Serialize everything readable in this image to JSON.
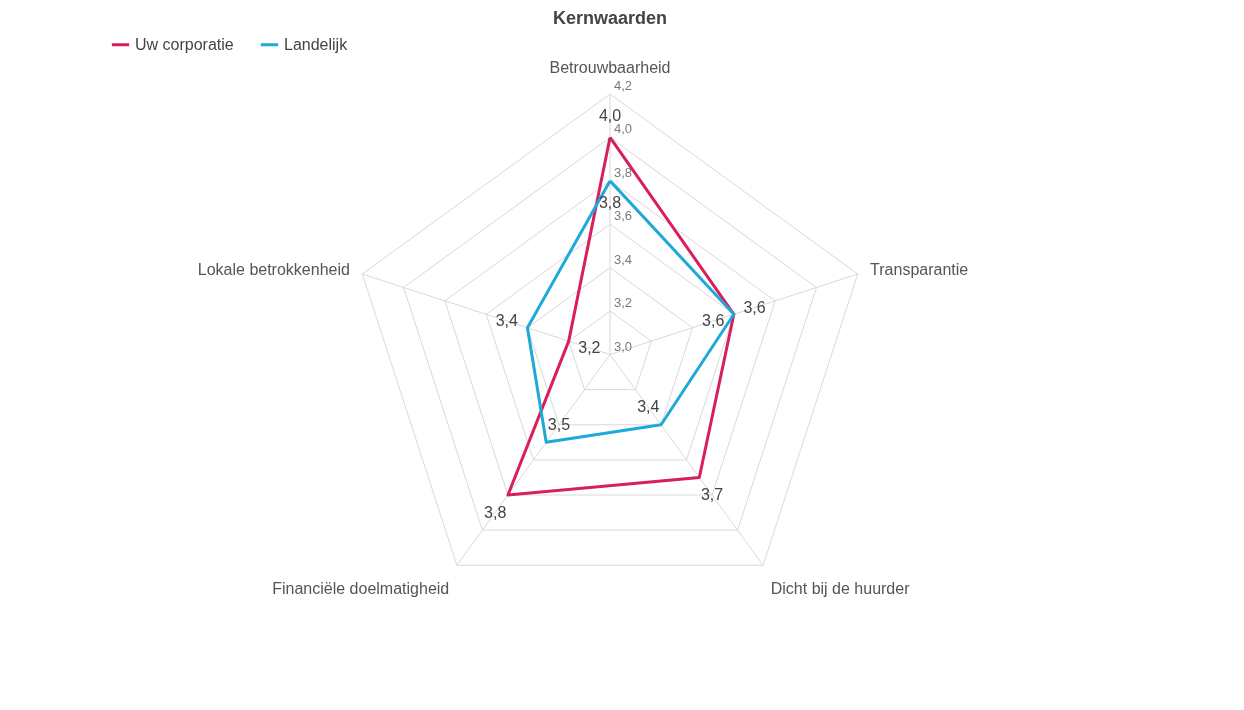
{
  "chart_data": {
    "type": "radar",
    "title": "Kernwaarden",
    "categories": [
      "Betrouwbaarheid",
      "Transparantie",
      "Dicht bij de huurder",
      "Financiële doelmatigheid",
      "Lokale betrokkenheid"
    ],
    "series": [
      {
        "name": "Uw corporatie",
        "color": "#d81f5c",
        "values": [
          4.0,
          3.6,
          3.7,
          3.8,
          3.2
        ],
        "value_labels": [
          "4,0",
          "3,6",
          "3,7",
          "3,8",
          "3,2"
        ]
      },
      {
        "name": "Landelijk",
        "color": "#1fa9d8",
        "values": [
          3.8,
          3.6,
          3.4,
          3.5,
          3.4
        ],
        "value_labels": [
          "3,8",
          "3,6",
          "3,4",
          "3,5",
          "3,4"
        ]
      }
    ],
    "ylim": [
      3.0,
      4.2
    ],
    "yticks": [
      {
        "value": 3.0,
        "label": "3,0"
      },
      {
        "value": 3.2,
        "label": "3,2"
      },
      {
        "value": 3.4,
        "label": "3,4"
      },
      {
        "value": 3.6,
        "label": "3,6"
      },
      {
        "value": 3.8,
        "label": "3,8"
      },
      {
        "value": 4.0,
        "label": "4,0"
      },
      {
        "value": 4.2,
        "label": "4,2"
      }
    ],
    "grid": true,
    "legend": "top",
    "marker": "none",
    "line_style": "solid"
  }
}
